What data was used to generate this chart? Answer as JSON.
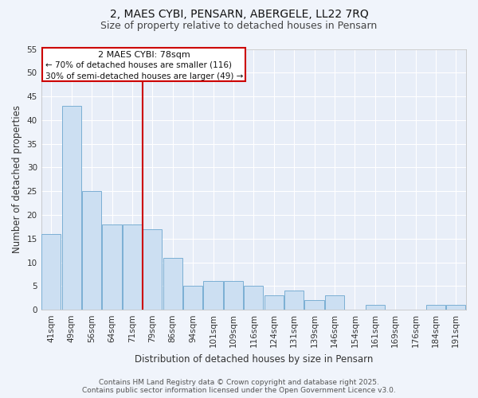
{
  "title": "2, MAES CYBI, PENSARN, ABERGELE, LL22 7RQ",
  "subtitle": "Size of property relative to detached houses in Pensarn",
  "xlabel": "Distribution of detached houses by size in Pensarn",
  "ylabel": "Number of detached properties",
  "bar_labels": [
    "41sqm",
    "49sqm",
    "56sqm",
    "64sqm",
    "71sqm",
    "79sqm",
    "86sqm",
    "94sqm",
    "101sqm",
    "109sqm",
    "116sqm",
    "124sqm",
    "131sqm",
    "139sqm",
    "146sqm",
    "154sqm",
    "161sqm",
    "169sqm",
    "176sqm",
    "184sqm",
    "191sqm"
  ],
  "bar_values": [
    16,
    43,
    25,
    18,
    18,
    17,
    11,
    5,
    6,
    6,
    5,
    3,
    4,
    2,
    3,
    0,
    1,
    0,
    0,
    1,
    1
  ],
  "bar_color": "#ccdff2",
  "bar_edge_color": "#7bafd4",
  "ylim": [
    0,
    55
  ],
  "yticks": [
    0,
    5,
    10,
    15,
    20,
    25,
    30,
    35,
    40,
    45,
    50,
    55
  ],
  "vline_color": "#cc0000",
  "annotation_title": "2 MAES CYBI: 78sqm",
  "annotation_line1": "← 70% of detached houses are smaller (116)",
  "annotation_line2": "30% of semi-detached houses are larger (49) →",
  "annotation_box_color": "#ffffff",
  "annotation_box_edge_color": "#cc0000",
  "footer1": "Contains HM Land Registry data © Crown copyright and database right 2025.",
  "footer2": "Contains public sector information licensed under the Open Government Licence v3.0.",
  "background_color": "#f0f4fb",
  "plot_bg_color": "#e8eef8",
  "grid_color": "#ffffff",
  "title_fontsize": 10,
  "subtitle_fontsize": 9,
  "axis_label_fontsize": 8.5,
  "tick_fontsize": 7.5,
  "footer_fontsize": 6.5,
  "annotation_fontsize": 7.5,
  "annotation_title_fontsize": 8
}
